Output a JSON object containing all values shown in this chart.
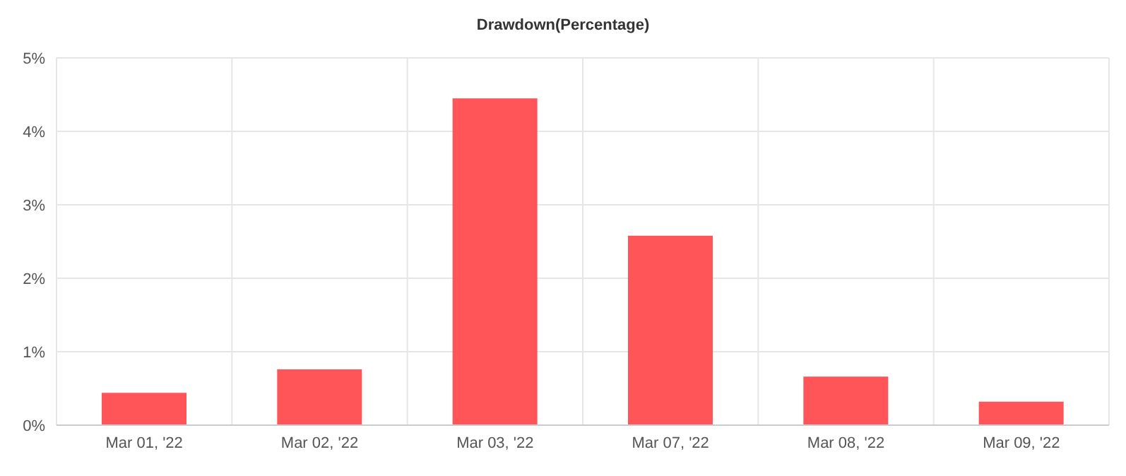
{
  "chart_data": {
    "type": "bar",
    "title": "Drawdown(Percentage)",
    "categories": [
      "Mar 01, '22",
      "Mar 02, '22",
      "Mar 03, '22",
      "Mar 07, '22",
      "Mar 08, '22",
      "Mar 09, '22"
    ],
    "values": [
      0.44,
      0.76,
      4.45,
      2.58,
      0.66,
      0.32
    ],
    "color": "#ff4b4f",
    "ylim": [
      0,
      5
    ],
    "yticks": [
      {
        "value": 0,
        "label": "0%"
      },
      {
        "value": 1,
        "label": "1%"
      },
      {
        "value": 2,
        "label": "2%"
      },
      {
        "value": 3,
        "label": "3%"
      },
      {
        "value": 4,
        "label": "4%"
      },
      {
        "value": 5,
        "label": "5%"
      }
    ],
    "grid": true
  }
}
